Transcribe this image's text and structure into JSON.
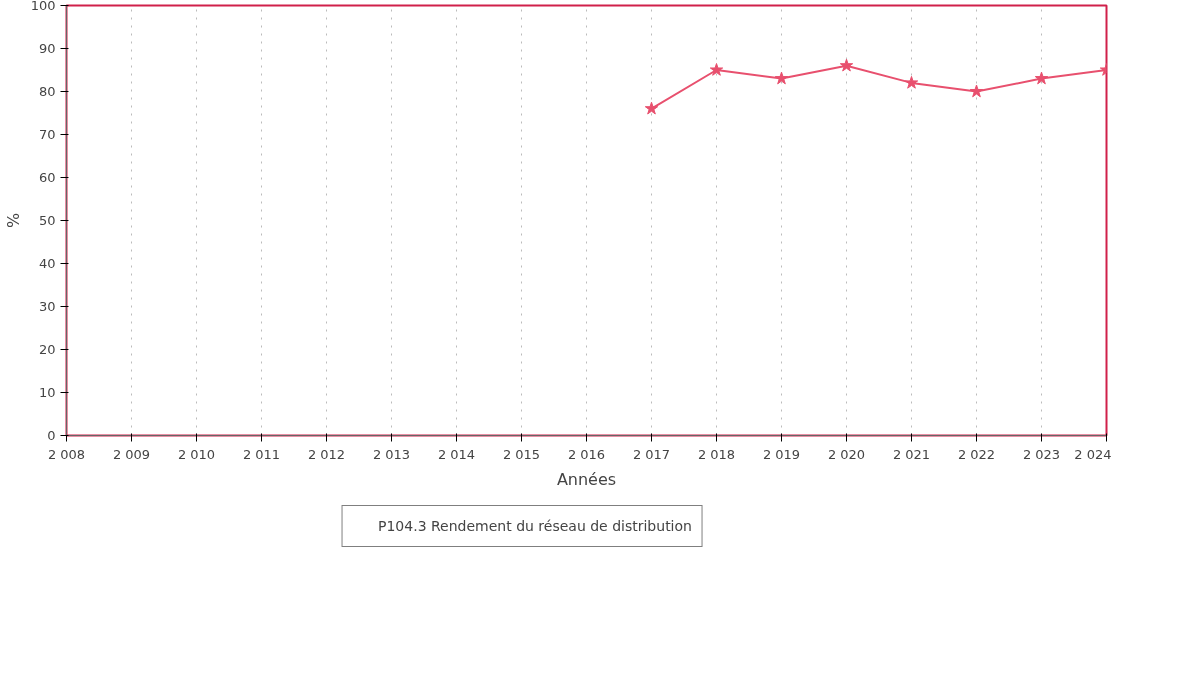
{
  "chart_data": {
    "type": "line",
    "xlabel": "Années",
    "ylabel": "%",
    "x": [
      2017,
      2018,
      2019,
      2020,
      2021,
      2022,
      2023,
      2024
    ],
    "series": [
      {
        "name": "P104.3 Rendement du réseau de distribution",
        "color": "#e8506e",
        "values": [
          76,
          85,
          83,
          86,
          82,
          80,
          83,
          85
        ]
      }
    ],
    "xlim": [
      2008,
      2024
    ],
    "xticks": [
      {
        "value": 2008,
        "label": "2 008"
      },
      {
        "value": 2009,
        "label": "2 009"
      },
      {
        "value": 2010,
        "label": "2 010"
      },
      {
        "value": 2011,
        "label": "2 011"
      },
      {
        "value": 2012,
        "label": "2 012"
      },
      {
        "value": 2013,
        "label": "2 013"
      },
      {
        "value": 2014,
        "label": "2 014"
      },
      {
        "value": 2015,
        "label": "2 015"
      },
      {
        "value": 2016,
        "label": "2 016"
      },
      {
        "value": 2017,
        "label": "2 017"
      },
      {
        "value": 2018,
        "label": "2 018"
      },
      {
        "value": 2019,
        "label": "2 019"
      },
      {
        "value": 2020,
        "label": "2 020"
      },
      {
        "value": 2021,
        "label": "2 021"
      },
      {
        "value": 2022,
        "label": "2 022"
      },
      {
        "value": 2023,
        "label": "2 023"
      },
      {
        "value": 2024,
        "label": "2 024"
      }
    ],
    "ylim": [
      0,
      100
    ],
    "yticks": [
      0,
      10,
      20,
      30,
      40,
      50,
      60,
      70,
      80,
      90,
      100
    ],
    "grid": "x",
    "legend": "bottom",
    "marker": "star",
    "line_style": "solid"
  }
}
